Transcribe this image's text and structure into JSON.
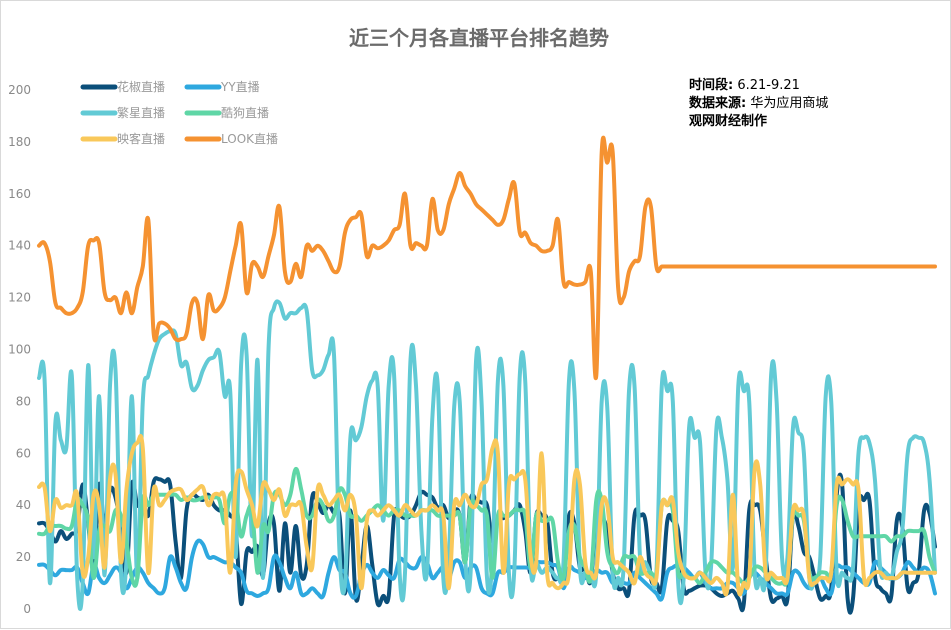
{
  "chart_data": {
    "type": "line",
    "title": "近三个月各直播平台排名趋势",
    "ylim": [
      0,
      200
    ],
    "y_ticks": [
      0,
      20,
      40,
      60,
      80,
      100,
      120,
      140,
      160,
      180,
      200
    ],
    "grid": false,
    "legend_position": "top-left",
    "annotations": [
      {
        "label": "时间段:",
        "value": "6.21-9.21"
      },
      {
        "label": "数据来源:",
        "value": "华为应用商城"
      },
      {
        "label": "观网财经制作",
        "value": ""
      }
    ],
    "series": [
      {
        "name": "花椒直播",
        "color": "#0b4f7a",
        "values": [
          33,
          33,
          30,
          26,
          30,
          27,
          29,
          31,
          48,
          33,
          16,
          48,
          32,
          46,
          43,
          31,
          14,
          48,
          40,
          41,
          36,
          49,
          50,
          49,
          48,
          26,
          12,
          38,
          44,
          43,
          42,
          44,
          40,
          38,
          38,
          36,
          31,
          2,
          22,
          22,
          24,
          13,
          33,
          33,
          7,
          33,
          14,
          32,
          13,
          17,
          43,
          41,
          37,
          40,
          37,
          36,
          6,
          38,
          4,
          16,
          32,
          17,
          2,
          5,
          5,
          36,
          36,
          35,
          36,
          40,
          45,
          44,
          43,
          39,
          40,
          35,
          38,
          36,
          18,
          42,
          42,
          41,
          40,
          26,
          35,
          35,
          36,
          38,
          40,
          30,
          14,
          36,
          36,
          34,
          14,
          12,
          16,
          36,
          33,
          16,
          16,
          11,
          38,
          36,
          30,
          14,
          8,
          8,
          7,
          36,
          36,
          34,
          12,
          10,
          8,
          34,
          34,
          30,
          8,
          7,
          8,
          9,
          9,
          8,
          6,
          5,
          6,
          7,
          4,
          2,
          38,
          40,
          38,
          20,
          4,
          4,
          5,
          4,
          36,
          32,
          22,
          20,
          12,
          4,
          5,
          8,
          44,
          48,
          4,
          4,
          40,
          42,
          42,
          13,
          8,
          6,
          5,
          34,
          32,
          8,
          10,
          14,
          38,
          37,
          24
        ]
      },
      {
        "name": "YY直播",
        "color": "#2ea8df",
        "values": [
          17,
          17,
          15,
          13,
          15,
          15,
          15,
          16,
          10,
          6,
          17,
          12,
          10,
          13,
          16,
          14,
          8,
          12,
          16,
          14,
          10,
          8,
          6,
          8,
          20,
          16,
          10,
          8,
          20,
          26,
          25,
          20,
          20,
          19,
          18,
          18,
          16,
          14,
          7,
          6,
          5,
          6,
          8,
          20,
          18,
          12,
          8,
          14,
          6,
          6,
          8,
          6,
          5,
          14,
          20,
          15,
          14,
          6,
          5,
          13,
          17,
          14,
          12,
          15,
          13,
          12,
          19,
          18,
          16,
          16,
          20,
          18,
          12,
          14,
          16,
          12,
          18,
          18,
          12,
          16,
          16,
          8,
          6,
          6,
          14,
          14,
          16,
          16,
          16,
          16,
          16,
          18,
          18,
          18,
          17,
          16,
          8,
          16,
          15,
          14,
          12,
          12,
          15,
          14,
          14,
          10,
          10,
          10,
          10,
          14,
          12,
          10,
          8,
          6,
          4,
          14,
          16,
          17,
          16,
          14,
          12,
          14,
          10,
          8,
          8,
          8,
          10,
          10,
          8,
          6,
          12,
          14,
          12,
          10,
          8,
          6,
          6,
          6,
          14,
          14,
          10,
          8,
          10,
          12,
          8,
          6,
          16,
          16,
          16,
          14,
          12,
          10,
          10,
          18,
          16,
          14,
          12,
          12,
          14,
          18,
          16,
          14,
          16,
          14,
          6
        ]
      },
      {
        "name": "繁星直播",
        "color": "#62cad5",
        "values": [
          89,
          89,
          10,
          72,
          65,
          62,
          90,
          12,
          10,
          94,
          20,
          82,
          13,
          86,
          92,
          14,
          18,
          82,
          12,
          80,
          90,
          98,
          104,
          106,
          107,
          106,
          94,
          95,
          85,
          86,
          92,
          96,
          97,
          99,
          82,
          84,
          20,
          94,
          98,
          28,
          96,
          12,
          100,
          116,
          118,
          112,
          114,
          114,
          116,
          115,
          92,
          90,
          92,
          98,
          98,
          22,
          10,
          66,
          65,
          70,
          82,
          88,
          86,
          34,
          86,
          90,
          14,
          14,
          96,
          86,
          30,
          14,
          74,
          86,
          12,
          20,
          78,
          80,
          20,
          14,
          96,
          80,
          12,
          20,
          88,
          86,
          14,
          15,
          90,
          88,
          16,
          18,
          14,
          16,
          14,
          12,
          18,
          88,
          84,
          16,
          14,
          14,
          14,
          80,
          78,
          14,
          12,
          16,
          84,
          86,
          20,
          18,
          14,
          14,
          86,
          84,
          80,
          10,
          12,
          70,
          66,
          64,
          14,
          16,
          70,
          66,
          50,
          16,
          86,
          84,
          80,
          14,
          12,
          14,
          90,
          80,
          20,
          20,
          70,
          68,
          60,
          12,
          12,
          20,
          82,
          80,
          14,
          14,
          12,
          16,
          60,
          66,
          64,
          50,
          15,
          14,
          12,
          22,
          30,
          60,
          66,
          66,
          64,
          50,
          14
        ]
      },
      {
        "name": "酷狗直播",
        "color": "#5fd6a6",
        "values": [
          29,
          29,
          32,
          32,
          32,
          31,
          32,
          42,
          40,
          34,
          12,
          30,
          32,
          30,
          38,
          36,
          26,
          12,
          12,
          42,
          40,
          44,
          44,
          44,
          44,
          44,
          42,
          43,
          42,
          42,
          43,
          43,
          43,
          42,
          33,
          44,
          42,
          28,
          36,
          38,
          14,
          32,
          30,
          44,
          44,
          40,
          44,
          54,
          46,
          36,
          36,
          42,
          40,
          34,
          36,
          46,
          44,
          36,
          36,
          34,
          36,
          38,
          40,
          38,
          36,
          38,
          38,
          36,
          36,
          36,
          38,
          38,
          38,
          36,
          36,
          36,
          36,
          36,
          18,
          40,
          40,
          38,
          36,
          12,
          36,
          36,
          36,
          38,
          38,
          36,
          16,
          36,
          34,
          34,
          34,
          18,
          12,
          30,
          32,
          20,
          16,
          12,
          42,
          42,
          22,
          16,
          14,
          20,
          20,
          20,
          14,
          14,
          14,
          14,
          40,
          40,
          38,
          14,
          14,
          12,
          12,
          10,
          14,
          18,
          18,
          16,
          14,
          14,
          12,
          10,
          12,
          16,
          16,
          14,
          12,
          10,
          10,
          12,
          36,
          36,
          34,
          14,
          12,
          14,
          14,
          14,
          40,
          42,
          34,
          28,
          28,
          28,
          28,
          28,
          28,
          28,
          26,
          28,
          28,
          30,
          30,
          30,
          30,
          20,
          14
        ]
      },
      {
        "name": "映客直播",
        "color": "#f9c85a",
        "values": [
          47,
          47,
          30,
          42,
          39,
          40,
          40,
          44,
          14,
          20,
          44,
          40,
          16,
          50,
          52,
          18,
          46,
          60,
          64,
          62,
          14,
          46,
          40,
          42,
          45,
          46,
          46,
          42,
          44,
          46,
          47,
          40,
          44,
          44,
          42,
          14,
          48,
          53,
          46,
          40,
          32,
          48,
          46,
          42,
          46,
          36,
          40,
          40,
          40,
          24,
          16,
          46,
          44,
          40,
          42,
          44,
          38,
          44,
          36,
          8,
          34,
          38,
          36,
          38,
          40,
          38,
          36,
          40,
          38,
          36,
          38,
          38,
          40,
          38,
          36,
          8,
          40,
          40,
          44,
          40,
          40,
          48,
          50,
          62,
          60,
          14,
          48,
          50,
          52,
          50,
          20,
          18,
          60,
          14,
          10,
          8,
          10,
          14,
          50,
          48,
          18,
          14,
          14,
          40,
          40,
          20,
          18,
          16,
          14,
          10,
          20,
          14,
          12,
          12,
          40,
          40,
          42,
          22,
          14,
          12,
          12,
          14,
          12,
          10,
          12,
          10,
          8,
          44,
          8,
          10,
          12,
          54,
          48,
          14,
          14,
          12,
          12,
          12,
          38,
          38,
          36,
          12,
          10,
          12,
          12,
          14,
          48,
          48,
          50,
          48,
          46,
          12,
          12,
          14,
          14,
          12,
          12,
          12,
          14,
          14,
          14,
          14,
          14,
          14,
          14
        ]
      },
      {
        "name": "LOOK直播",
        "color": "#f59231",
        "values": [
          140,
          141,
          134,
          118,
          116,
          114,
          114,
          116,
          122,
          140,
          142,
          141,
          122,
          119,
          120,
          114,
          122,
          114,
          124,
          132,
          150,
          106,
          110,
          110,
          108,
          104,
          104,
          106,
          118,
          118,
          104,
          121,
          115,
          116,
          120,
          130,
          140,
          148,
          122,
          133,
          132,
          128,
          136,
          144,
          155,
          130,
          126,
          133,
          128,
          140,
          138,
          140,
          138,
          134,
          130,
          132,
          145,
          150,
          151,
          152,
          136,
          140,
          139,
          140,
          142,
          146,
          148,
          160,
          140,
          141,
          140,
          140,
          158,
          146,
          146,
          156,
          162,
          168,
          163,
          160,
          156,
          154,
          152,
          150,
          148,
          150,
          158,
          164,
          145,
          145,
          141,
          140,
          138,
          138,
          140,
          150,
          126,
          126,
          125,
          125,
          126,
          130,
          90,
          176,
          172,
          176,
          124,
          120,
          130,
          134,
          136,
          155,
          155,
          132,
          132,
          132,
          132,
          132,
          132,
          132,
          132,
          132,
          132,
          132,
          132,
          132,
          132,
          132,
          132,
          132,
          132,
          132,
          132,
          132,
          132,
          132,
          132,
          132,
          132,
          132,
          132,
          132,
          132,
          132,
          132,
          132,
          132,
          132,
          132,
          132,
          132,
          132,
          132,
          132,
          132,
          132,
          132,
          132,
          132,
          132,
          132,
          132,
          132,
          132,
          132
        ]
      }
    ]
  }
}
